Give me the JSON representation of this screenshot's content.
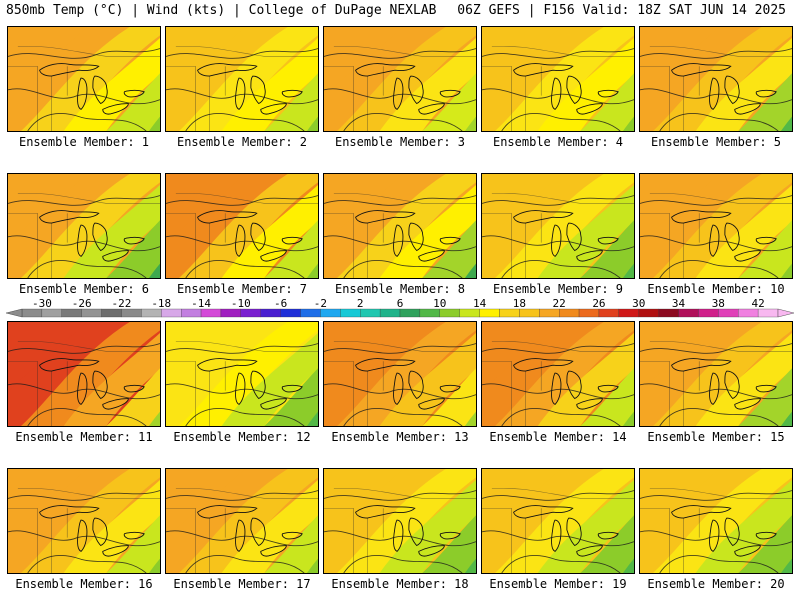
{
  "header": {
    "left": "850mb Temp (°C) | Wind (kts) | College of DuPage NEXLAB",
    "right": "06Z GEFS | F156 Valid: 18Z SAT JUN 14 2025"
  },
  "label_prefix": "Ensemble Member: ",
  "members": [
    {
      "label": "Ensemble Member: 1",
      "member": 1,
      "colors": [
        "#f5a623",
        "#f7d21a",
        "#fff000",
        "#c9e61e",
        "#8ccc2a",
        "#52b847",
        "#2fa15c"
      ]
    },
    {
      "label": "Ensemble Member: 2",
      "member": 2,
      "colors": [
        "#f7c31b",
        "#fbe414",
        "#fff000",
        "#c9e61e",
        "#8ccc2a",
        "#6abd39",
        "#3ea94f"
      ]
    },
    {
      "label": "Ensemble Member: 3",
      "member": 3,
      "colors": [
        "#f5a623",
        "#f7c31b",
        "#fbe414",
        "#d6ea1a",
        "#a3d42a",
        "#6abd39",
        "#3ea94f"
      ]
    },
    {
      "label": "Ensemble Member: 4",
      "member": 4,
      "colors": [
        "#f7c31b",
        "#fbe414",
        "#fff000",
        "#c9e61e",
        "#8ccc2a",
        "#52b847",
        "#1fb38a"
      ]
    },
    {
      "label": "Ensemble Member: 5",
      "member": 5,
      "colors": [
        "#f5a623",
        "#f7c31b",
        "#fbe414",
        "#a3d42a",
        "#52b847",
        "#1fb38a",
        "#21c7b0"
      ]
    },
    {
      "label": "Ensemble Member: 6",
      "member": 6,
      "colors": [
        "#f5a623",
        "#f7d21a",
        "#c9e61e",
        "#8ccc2a",
        "#3ea94f",
        "#2fa15c",
        "#1fb38a"
      ]
    },
    {
      "label": "Ensemble Member: 7",
      "member": 7,
      "colors": [
        "#f08a1d",
        "#f7c31b",
        "#fff000",
        "#c9e61e",
        "#8ccc2a",
        "#52b847",
        "#2fa15c"
      ]
    },
    {
      "label": "Ensemble Member: 8",
      "member": 8,
      "colors": [
        "#f5a623",
        "#f7d21a",
        "#fff000",
        "#a3d42a",
        "#3ea94f",
        "#1fb38a",
        "#17c9d6"
      ]
    },
    {
      "label": "Ensemble Member: 9",
      "member": 9,
      "colors": [
        "#f7c31b",
        "#fbe414",
        "#c9e61e",
        "#8ccc2a",
        "#52b847",
        "#3ea94f",
        "#2fa15c"
      ]
    },
    {
      "label": "Ensemble Member: 10",
      "member": 10,
      "colors": [
        "#f5a623",
        "#f7c31b",
        "#fbe414",
        "#c9e61e",
        "#8ccc2a",
        "#52b847",
        "#2fa15c"
      ]
    },
    {
      "label": "Ensemble Member: 11",
      "member": 11,
      "colors": [
        "#e0411e",
        "#f08a1d",
        "#f5a623",
        "#f7d21a",
        "#a3d42a",
        "#52b847",
        "#2fa15c"
      ]
    },
    {
      "label": "Ensemble Member: 12",
      "member": 12,
      "colors": [
        "#fbe414",
        "#fff000",
        "#c9e61e",
        "#8ccc2a",
        "#52b847",
        "#2fa15c",
        "#1fb38a"
      ]
    },
    {
      "label": "Ensemble Member: 13",
      "member": 13,
      "colors": [
        "#f08a1d",
        "#f5a623",
        "#f7c31b",
        "#fbe414",
        "#a3d42a",
        "#52b847",
        "#2fa15c"
      ]
    },
    {
      "label": "Ensemble Member: 14",
      "member": 14,
      "colors": [
        "#f08a1d",
        "#f5a623",
        "#f7d21a",
        "#c9e61e",
        "#8ccc2a",
        "#52b847",
        "#2fa15c"
      ]
    },
    {
      "label": "Ensemble Member: 15",
      "member": 15,
      "colors": [
        "#f5a623",
        "#f7c31b",
        "#fbe414",
        "#a3d42a",
        "#52b847",
        "#1fb38a",
        "#21c7b0"
      ]
    },
    {
      "label": "Ensemble Member: 16",
      "member": 16,
      "colors": [
        "#f5a623",
        "#f7c31b",
        "#fbe414",
        "#c9e61e",
        "#8ccc2a",
        "#52b847",
        "#2fa15c"
      ]
    },
    {
      "label": "Ensemble Member: 17",
      "member": 17,
      "colors": [
        "#f5a623",
        "#f7c31b",
        "#fbe414",
        "#c9e61e",
        "#8ccc2a",
        "#52b847",
        "#1fb38a"
      ]
    },
    {
      "label": "Ensemble Member: 18",
      "member": 18,
      "colors": [
        "#f7c31b",
        "#fbe414",
        "#c9e61e",
        "#8ccc2a",
        "#52b847",
        "#1fb38a",
        "#21c7b0"
      ]
    },
    {
      "label": "Ensemble Member: 19",
      "member": 19,
      "colors": [
        "#f7c31b",
        "#fbe414",
        "#c9e61e",
        "#8ccc2a",
        "#52b847",
        "#2fa15c",
        "#21c7b0"
      ]
    },
    {
      "label": "Ensemble Member: 20",
      "member": 20,
      "colors": [
        "#f7c31b",
        "#fbe414",
        "#c9e61e",
        "#8ccc2a",
        "#52b847",
        "#1fb38a",
        "#21c7b0"
      ]
    }
  ],
  "colorbar": {
    "units": "°C",
    "ticks": [
      "-30",
      "-26",
      "-22",
      "-18",
      "-14",
      "-10",
      "-6",
      "-2",
      "2",
      "6",
      "10",
      "14",
      "18",
      "22",
      "26",
      "30",
      "34",
      "38",
      "42"
    ],
    "tick_values": [
      -30,
      -26,
      -22,
      -18,
      -14,
      -10,
      -6,
      -2,
      2,
      6,
      10,
      14,
      18,
      22,
      26,
      30,
      34,
      38,
      42
    ],
    "range": [
      -32,
      44
    ],
    "bins": [
      {
        "from": -32,
        "to": -30,
        "color": "#8c8c8c"
      },
      {
        "from": -30,
        "to": -28,
        "color": "#a0a0a0"
      },
      {
        "from": -28,
        "to": -26,
        "color": "#7a7a7a"
      },
      {
        "from": -26,
        "to": -24,
        "color": "#939393"
      },
      {
        "from": -24,
        "to": -22,
        "color": "#6e6e6e"
      },
      {
        "from": -22,
        "to": -20,
        "color": "#8a8a8a"
      },
      {
        "from": -20,
        "to": -18,
        "color": "#b3b3b3"
      },
      {
        "from": -18,
        "to": -16,
        "color": "#d7a8e8"
      },
      {
        "from": -16,
        "to": -14,
        "color": "#c27fe0"
      },
      {
        "from": -14,
        "to": -12,
        "color": "#d44ad8"
      },
      {
        "from": -12,
        "to": -10,
        "color": "#a020c0"
      },
      {
        "from": -10,
        "to": -8,
        "color": "#7a20d0"
      },
      {
        "from": -8,
        "to": -6,
        "color": "#4a1fd0"
      },
      {
        "from": -6,
        "to": -4,
        "color": "#1f2fd8"
      },
      {
        "from": -4,
        "to": -2,
        "color": "#1f6ee8"
      },
      {
        "from": -2,
        "to": 0,
        "color": "#1fa8f0"
      },
      {
        "from": 0,
        "to": 2,
        "color": "#17c9d6"
      },
      {
        "from": 2,
        "to": 4,
        "color": "#21c7b0"
      },
      {
        "from": 4,
        "to": 6,
        "color": "#1fb38a"
      },
      {
        "from": 6,
        "to": 8,
        "color": "#2fa15c"
      },
      {
        "from": 8,
        "to": 10,
        "color": "#52b847"
      },
      {
        "from": 10,
        "to": 12,
        "color": "#8ccc2a"
      },
      {
        "from": 12,
        "to": 14,
        "color": "#c9e61e"
      },
      {
        "from": 14,
        "to": 16,
        "color": "#fff000"
      },
      {
        "from": 16,
        "to": 18,
        "color": "#f7d21a"
      },
      {
        "from": 18,
        "to": 20,
        "color": "#f7c31b"
      },
      {
        "from": 20,
        "to": 22,
        "color": "#f5a623"
      },
      {
        "from": 22,
        "to": 24,
        "color": "#f08a1d"
      },
      {
        "from": 24,
        "to": 26,
        "color": "#ec6a1d"
      },
      {
        "from": 26,
        "to": 28,
        "color": "#e0411e"
      },
      {
        "from": 28,
        "to": 30,
        "color": "#d01818"
      },
      {
        "from": 30,
        "to": 32,
        "color": "#b01010"
      },
      {
        "from": 32,
        "to": 34,
        "color": "#8c0a20"
      },
      {
        "from": 34,
        "to": 36,
        "color": "#b0105a"
      },
      {
        "from": 36,
        "to": 38,
        "color": "#d0208a"
      },
      {
        "from": 38,
        "to": 40,
        "color": "#e040b8"
      },
      {
        "from": 40,
        "to": 42,
        "color": "#f080e0"
      },
      {
        "from": 42,
        "to": 44,
        "color": "#f8b8f0"
      }
    ]
  }
}
